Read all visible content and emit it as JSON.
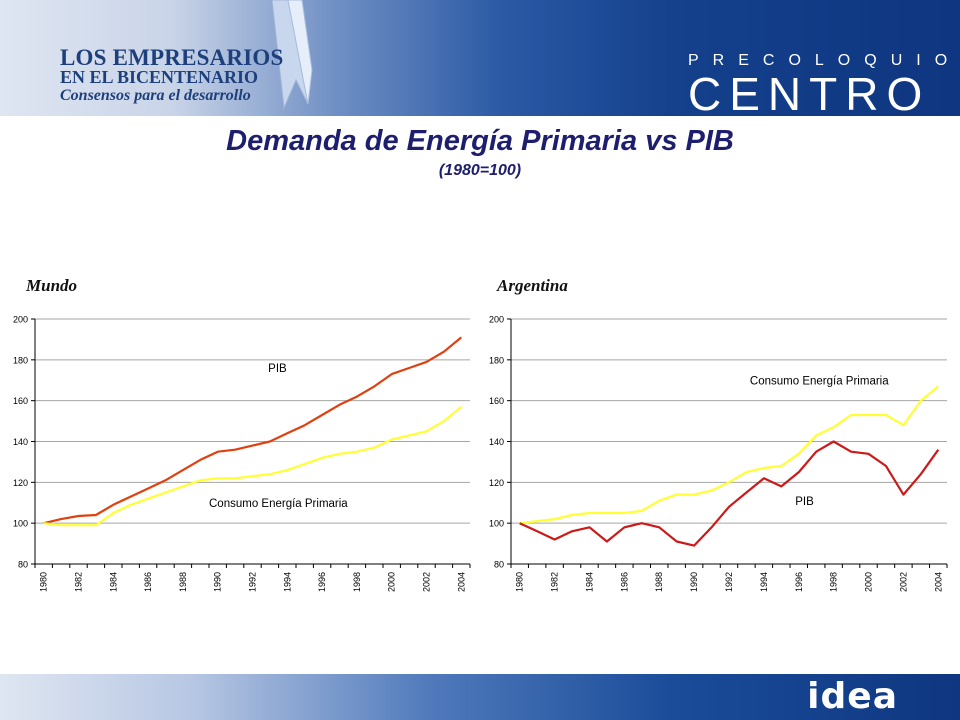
{
  "header": {
    "left_logo": {
      "line1": "LOS EMPRESARIOS",
      "line2": "EN EL BICENTENARIO",
      "line3": "Consensos para el desarrollo"
    },
    "right_logo": {
      "small": "PRECOLOQUIO",
      "big": "CENTRO"
    }
  },
  "title": "Demanda de Energía Primaria vs PIB",
  "subtitle": "(1980=100)",
  "footer": {
    "logo": "idea"
  },
  "colors": {
    "header_dark": "#0f3680",
    "pib_world": "#e04010",
    "pib_arg": "#cc1a1a",
    "energy": "#ffff33"
  },
  "chart_data": [
    {
      "type": "line",
      "title": "Mundo",
      "x": [
        1980,
        1981,
        1982,
        1983,
        1984,
        1985,
        1986,
        1987,
        1988,
        1989,
        1990,
        1991,
        1992,
        1993,
        1994,
        1995,
        1996,
        1997,
        1998,
        1999,
        2000,
        2001,
        2002,
        2003,
        2004
      ],
      "xticks": [
        "1980",
        "1982",
        "1984",
        "1986",
        "1988",
        "1990",
        "1992",
        "1994",
        "1996",
        "1998",
        "2000",
        "2002",
        "2004"
      ],
      "ylim": [
        80,
        200
      ],
      "yticks": [
        "80",
        "100",
        "120",
        "140",
        "160",
        "180",
        "200"
      ],
      "grid": true,
      "series": [
        {
          "name": "PIB",
          "color": "#e04010",
          "label_x": 1992.9,
          "label_y": 174,
          "values": [
            100,
            102,
            103.5,
            104,
            109,
            113,
            117,
            121,
            126,
            131,
            135,
            136,
            138,
            140,
            144,
            148,
            153,
            158,
            162,
            167,
            173,
            176,
            179,
            184,
            191
          ]
        },
        {
          "name": "Consumo Energía Primaria",
          "color": "#ffff33",
          "label_x": 1989.5,
          "label_y": 108,
          "values": [
            100,
            99,
            99,
            99,
            105,
            109,
            112,
            115,
            118,
            121,
            122,
            122,
            123,
            124,
            126,
            129,
            132,
            134,
            135,
            137,
            141,
            143,
            145,
            150,
            157
          ]
        }
      ]
    },
    {
      "type": "line",
      "title": "Argentina",
      "x": [
        1980,
        1981,
        1982,
        1983,
        1984,
        1985,
        1986,
        1987,
        1988,
        1989,
        1990,
        1991,
        1992,
        1993,
        1994,
        1995,
        1996,
        1997,
        1998,
        1999,
        2000,
        2001,
        2002,
        2003,
        2004
      ],
      "xticks": [
        "1980",
        "1982",
        "1984",
        "1986",
        "1988",
        "1990",
        "1992",
        "1994",
        "1996",
        "1998",
        "2000",
        "2002",
        "2004"
      ],
      "ylim": [
        80,
        200
      ],
      "yticks": [
        "80",
        "100",
        "120",
        "140",
        "160",
        "180",
        "200"
      ],
      "grid": true,
      "series": [
        {
          "name": "Consumo Energía Primaria",
          "color": "#ffff33",
          "label_x": 1993.2,
          "label_y": 168,
          "values": [
            100,
            101,
            102,
            104,
            105,
            105,
            105,
            106,
            111,
            114,
            114,
            116,
            120,
            125,
            127,
            128,
            134,
            143,
            147,
            153,
            153,
            153,
            148,
            160,
            167
          ]
        },
        {
          "name": "PIB",
          "color": "#cc1a1a",
          "label_x": 1995.8,
          "label_y": 109,
          "values": [
            100,
            96,
            92,
            96,
            98,
            91,
            98,
            100,
            98,
            91,
            89,
            98,
            108,
            115,
            122,
            118,
            125,
            135,
            140,
            135,
            134,
            128,
            114,
            124,
            136
          ]
        }
      ]
    }
  ]
}
